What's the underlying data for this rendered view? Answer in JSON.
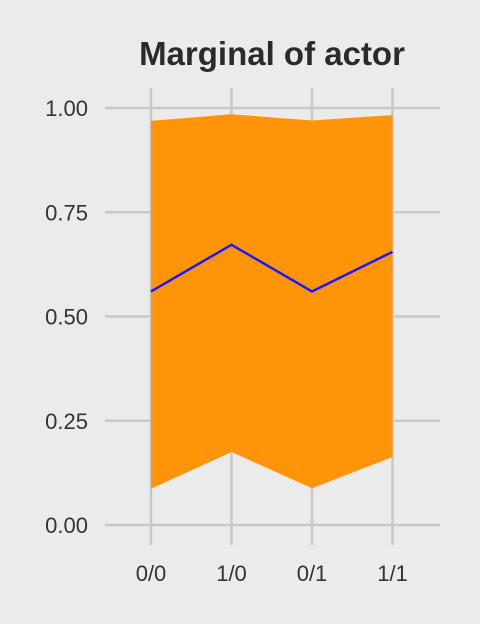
{
  "chart_data": {
    "type": "area",
    "title": "Marginal of actor",
    "xlabel": "",
    "ylabel": "",
    "categories": [
      "0/0",
      "1/0",
      "0/1",
      "1/1"
    ],
    "ylim": [
      0,
      1
    ],
    "yticks": [
      0.0,
      0.25,
      0.5,
      0.75,
      1.0
    ],
    "ytick_labels": [
      "0.00",
      "0.25",
      "0.50",
      "0.75",
      "1.00"
    ],
    "band": {
      "lower": [
        0.087,
        0.175,
        0.088,
        0.163
      ],
      "upper": [
        0.969,
        0.985,
        0.97,
        0.983
      ]
    },
    "line": {
      "values": [
        0.56,
        0.672,
        0.56,
        0.655
      ]
    },
    "grid": true,
    "legend": "none",
    "colors": {
      "background": "#ebebeb",
      "grid": "#c8c8c8",
      "band": "#ff9408",
      "line": "#1a1aff",
      "title": "#2b2b2b",
      "tick_text": "#333333"
    }
  }
}
